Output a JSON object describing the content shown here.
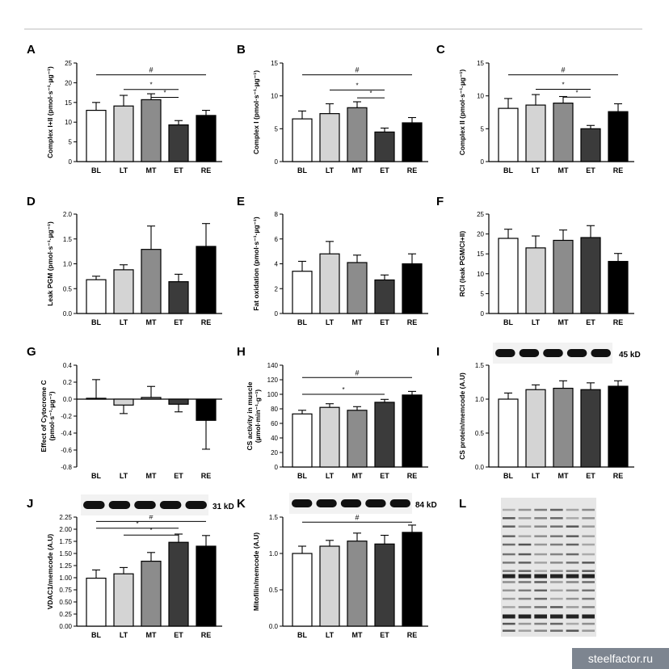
{
  "watermark": "steelfactor.ru",
  "colors": {
    "BL": "#ffffff",
    "LT": "#d4d4d4",
    "MT": "#8c8c8c",
    "ET": "#3b3b3b",
    "RE": "#000000",
    "axis": "#000000",
    "topRule": "#bbbbbb"
  },
  "chart_data": [
    {
      "panel": "A",
      "type": "bar",
      "categories": [
        "BL",
        "LT",
        "MT",
        "ET",
        "RE"
      ],
      "values": [
        13.0,
        14.1,
        15.7,
        9.3,
        11.7
      ],
      "errors": [
        2.0,
        2.7,
        1.5,
        1.1,
        1.3
      ],
      "ylabel": "Complex I+II (pmol·s⁻¹·µg⁻¹)",
      "ylim": [
        0,
        25
      ],
      "yticks": [
        0,
        5,
        10,
        15,
        20,
        25
      ],
      "sig": [
        {
          "from": 0,
          "to": 4,
          "label": "#",
          "y": 22.0
        },
        {
          "from": 1,
          "to": 3,
          "label": "*",
          "y": 18.3
        },
        {
          "from": 2,
          "to": 3,
          "label": "*",
          "y": 16.3
        }
      ]
    },
    {
      "panel": "B",
      "type": "bar",
      "categories": [
        "BL",
        "LT",
        "MT",
        "ET",
        "RE"
      ],
      "values": [
        6.5,
        7.3,
        8.2,
        4.5,
        5.9
      ],
      "errors": [
        1.2,
        1.5,
        0.9,
        0.6,
        0.8
      ],
      "ylabel": "Complex I (pmol·s⁻¹·µg⁻¹)",
      "ylim": [
        0,
        15
      ],
      "yticks": [
        0,
        5,
        10,
        15
      ],
      "sig": [
        {
          "from": 0,
          "to": 4,
          "label": "#",
          "y": 13.2
        },
        {
          "from": 1,
          "to": 3,
          "label": "*",
          "y": 10.9
        },
        {
          "from": 2,
          "to": 3,
          "label": "*",
          "y": 9.7
        }
      ]
    },
    {
      "panel": "C",
      "type": "bar",
      "categories": [
        "BL",
        "LT",
        "MT",
        "ET",
        "RE"
      ],
      "values": [
        8.1,
        8.6,
        8.9,
        5.0,
        7.6
      ],
      "errors": [
        1.5,
        1.6,
        1.0,
        0.5,
        1.2
      ],
      "ylabel": "Complex II (pmol·s⁻¹·µg⁻¹)",
      "ylim": [
        0,
        15
      ],
      "yticks": [
        0,
        5,
        10,
        15
      ],
      "sig": [
        {
          "from": 0,
          "to": 4,
          "label": "#",
          "y": 13.2
        },
        {
          "from": 1,
          "to": 3,
          "label": "*",
          "y": 11.0
        },
        {
          "from": 2,
          "to": 3,
          "label": "*",
          "y": 9.8
        }
      ]
    },
    {
      "panel": "D",
      "type": "bar",
      "categories": [
        "BL",
        "LT",
        "MT",
        "ET",
        "RE"
      ],
      "values": [
        0.68,
        0.88,
        1.29,
        0.64,
        1.35
      ],
      "errors": [
        0.07,
        0.1,
        0.47,
        0.15,
        0.46
      ],
      "ylabel": "Leak PGM (pmol·s⁻¹·µg⁻¹)",
      "ylim": [
        0,
        2.0
      ],
      "yticks": [
        0,
        0.5,
        1.0,
        1.5,
        2.0
      ],
      "sig": []
    },
    {
      "panel": "E",
      "type": "bar",
      "categories": [
        "BL",
        "LT",
        "MT",
        "ET",
        "RE"
      ],
      "values": [
        3.4,
        4.8,
        4.1,
        2.7,
        4.0
      ],
      "errors": [
        0.8,
        1.0,
        0.6,
        0.4,
        0.8
      ],
      "ylabel": "Fat oxidation (pmol·s⁻¹·µg⁻¹)",
      "ylim": [
        0,
        8
      ],
      "yticks": [
        0,
        2,
        4,
        6,
        8
      ],
      "sig": []
    },
    {
      "panel": "F",
      "type": "bar",
      "categories": [
        "BL",
        "LT",
        "MT",
        "ET",
        "RE"
      ],
      "values": [
        18.9,
        16.5,
        18.4,
        19.1,
        13.1
      ],
      "errors": [
        2.3,
        3.0,
        2.6,
        3.0,
        2.0
      ],
      "ylabel": "RCI (leak PGM/CI+II)",
      "ylim": [
        0,
        25
      ],
      "yticks": [
        0,
        5,
        10,
        15,
        20,
        25
      ],
      "sig": []
    },
    {
      "panel": "G",
      "type": "bar",
      "categories": [
        "BL",
        "LT",
        "MT",
        "ET",
        "RE"
      ],
      "values": [
        0.01,
        -0.07,
        0.02,
        -0.06,
        -0.25
      ],
      "errors": [
        0.22,
        0.1,
        0.13,
        0.09,
        0.34
      ],
      "ylabel": "Effect of Cytocrome C",
      "ylabel2": "(pmol·s⁻¹·µg⁻¹)",
      "ylim": [
        -0.8,
        0.4
      ],
      "yticks": [
        -0.8,
        -0.6,
        -0.4,
        -0.2,
        0.0,
        0.2,
        0.4
      ],
      "sig": []
    },
    {
      "panel": "H",
      "type": "bar",
      "categories": [
        "BL",
        "LT",
        "MT",
        "ET",
        "RE"
      ],
      "values": [
        73,
        82,
        78,
        89,
        99
      ],
      "errors": [
        5,
        5,
        5,
        4,
        5
      ],
      "ylabel": "CS activity in muscle",
      "ylabel2": "(µmol·min⁻¹·g⁻¹)",
      "ylim": [
        0,
        140
      ],
      "yticks": [
        0,
        20,
        40,
        60,
        80,
        100,
        120,
        140
      ],
      "sig": [
        {
          "from": 0,
          "to": 4,
          "label": "#",
          "y": 123
        },
        {
          "from": 0,
          "to": 3,
          "label": "*",
          "y": 100
        }
      ]
    },
    {
      "panel": "I",
      "type": "bar",
      "categories": [
        "BL",
        "LT",
        "MT",
        "ET",
        "RE"
      ],
      "values": [
        1.0,
        1.14,
        1.16,
        1.14,
        1.19
      ],
      "errors": [
        0.09,
        0.07,
        0.11,
        0.1,
        0.08
      ],
      "ylabel": "CS protein/memcode (A.U)",
      "ylim": [
        0,
        1.5
      ],
      "yticks": [
        0,
        0.5,
        1.0,
        1.5
      ],
      "blot": "45 kD",
      "sig": []
    },
    {
      "panel": "J",
      "type": "bar",
      "categories": [
        "BL",
        "LT",
        "MT",
        "ET",
        "RE"
      ],
      "values": [
        0.99,
        1.08,
        1.34,
        1.73,
        1.65
      ],
      "errors": [
        0.17,
        0.13,
        0.18,
        0.17,
        0.22
      ],
      "ylabel": "VDAC1/memcode (A.U)",
      "ylim": [
        0,
        2.25
      ],
      "yticks": [
        0,
        0.25,
        0.5,
        0.75,
        1.0,
        1.25,
        1.5,
        1.75,
        2.0,
        2.25
      ],
      "blot": "31 kD",
      "sig": [
        {
          "from": 0,
          "to": 4,
          "label": "#",
          "y": 2.16
        },
        {
          "from": 0,
          "to": 3,
          "label": "*",
          "y": 2.02
        },
        {
          "from": 1,
          "to": 3,
          "label": "*",
          "y": 1.88
        }
      ]
    },
    {
      "panel": "K",
      "type": "bar",
      "categories": [
        "BL",
        "LT",
        "MT",
        "ET",
        "RE"
      ],
      "values": [
        1.0,
        1.1,
        1.17,
        1.13,
        1.29
      ],
      "errors": [
        0.1,
        0.08,
        0.11,
        0.12,
        0.1
      ],
      "ylabel": "Mitofilin/memcode (A.U)",
      "ylim": [
        0,
        1.5
      ],
      "yticks": [
        0,
        0.5,
        1.0,
        1.5
      ],
      "blot": "84 kD",
      "sig": [
        {
          "from": 0,
          "to": 4,
          "label": "#",
          "y": 1.43
        }
      ]
    },
    {
      "panel": "L",
      "type": "gel"
    }
  ]
}
